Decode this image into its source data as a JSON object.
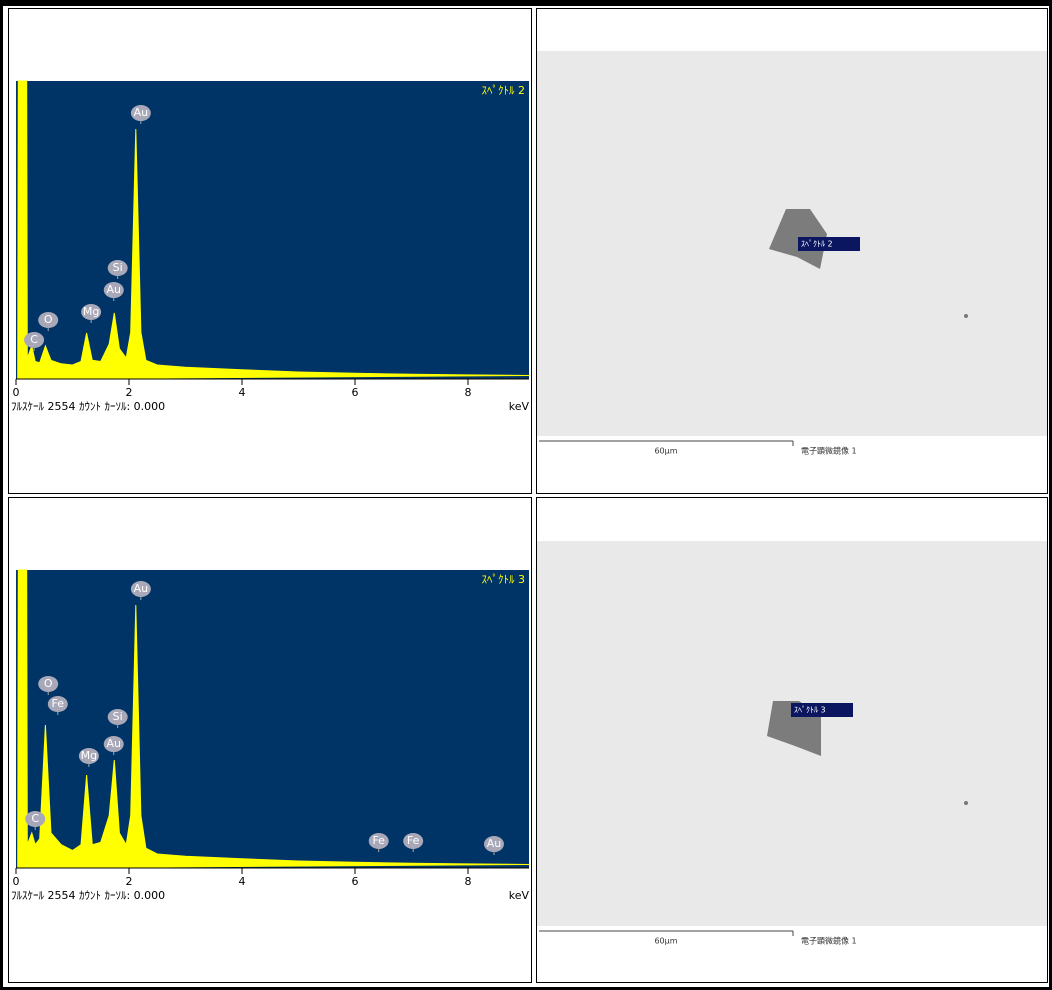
{
  "table": {
    "rows": [
      [
        {
          "chart_data": {
            "type": "line",
            "title": "ｽﾍﾟｸﾄﾙ 2",
            "x_label": "keV",
            "footer": "ﾌﾙｽｹｰﾙ 2554 ｶｳﾝﾄ ｶｰｿﾙ: 0.000",
            "xlim": [
              0,
              9.08
            ],
            "ylim": [
              0,
              2554
            ],
            "xticks": [
              0,
              2,
              4,
              6,
              8
            ],
            "color": "#ffff00",
            "background": "#003366",
            "x": [
              0.03,
              0.04,
              0.19,
              0.2,
              0.28,
              0.34,
              0.42,
              0.52,
              0.62,
              0.8,
              1.0,
              1.15,
              1.25,
              1.35,
              1.5,
              1.65,
              1.74,
              1.83,
              1.95,
              2.03,
              2.12,
              2.21,
              2.3,
              2.5,
              3,
              4,
              5,
              6,
              7,
              8,
              9.08
            ],
            "values": [
              0,
              2554,
              2554,
              180,
              283,
              150,
              140,
              283,
              160,
              130,
              120,
              150,
              394,
              160,
              150,
              300,
              566,
              260,
              180,
              400,
              2143,
              400,
              160,
              120,
              100,
              80,
              60,
              50,
              40,
              35,
              30
            ],
            "peak_labels": [
              {
                "label": "C",
                "x": 0.32,
                "y": 240
              },
              {
                "label": "O",
                "x": 0.57,
                "y": 411
              },
              {
                "label": "Mg",
                "x": 1.33,
                "y": 480
              },
              {
                "label": "Au",
                "x": 1.73,
                "y": 668
              },
              {
                "label": "Si",
                "x": 1.8,
                "y": 857
              },
              {
                "label": "Au",
                "x": 2.21,
                "y": 2185
              }
            ]
          }
        },
        {
          "image": {
            "label": "ｽﾍﾟｸﾄﾙ 2",
            "scale": "60µm",
            "caption": "電子顕微鏡像 1"
          }
        }
      ],
      [
        {
          "chart_data": {
            "type": "line",
            "title": "ｽﾍﾟｸﾄﾙ 3",
            "x_label": "keV",
            "footer": "ﾌﾙｽｹｰﾙ 2554 ｶｳﾝﾄ ｶｰｿﾙ: 0.000",
            "xlim": [
              0,
              9.08
            ],
            "ylim": [
              0,
              2554
            ],
            "xticks": [
              0,
              2,
              4,
              6,
              8
            ],
            "color": "#ffff00",
            "background": "#003366",
            "x": [
              0.03,
              0.04,
              0.19,
              0.2,
              0.28,
              0.34,
              0.42,
              0.52,
              0.62,
              0.8,
              1.0,
              1.15,
              1.25,
              1.35,
              1.5,
              1.65,
              1.74,
              1.83,
              1.95,
              2.03,
              2.12,
              2.21,
              2.3,
              2.5,
              3,
              4,
              5,
              6,
              7,
              8,
              9.08
            ],
            "values": [
              0,
              2554,
              2554,
              200,
              300,
              200,
              250,
              1226,
              300,
              200,
              150,
              200,
              797,
              200,
              220,
              450,
              926,
              300,
              200,
              450,
              2254,
              450,
              170,
              120,
              100,
              80,
              60,
              50,
              40,
              35,
              30
            ],
            "peak_labels": [
              {
                "label": "C",
                "x": 0.34,
                "y": 326
              },
              {
                "label": "O",
                "x": 0.57,
                "y": 1483
              },
              {
                "label": "Fe",
                "x": 0.74,
                "y": 1311
              },
              {
                "label": "Mg",
                "x": 1.29,
                "y": 866
              },
              {
                "label": "Au",
                "x": 1.73,
                "y": 968
              },
              {
                "label": "Si",
                "x": 1.8,
                "y": 1200
              },
              {
                "label": "Au",
                "x": 2.21,
                "y": 2297
              },
              {
                "label": "Fe",
                "x": 6.42,
                "y": 137
              },
              {
                "label": "Fe",
                "x": 7.03,
                "y": 137
              },
              {
                "label": "Au",
                "x": 8.46,
                "y": 111
              }
            ]
          }
        },
        {
          "image": {
            "label": "ｽﾍﾟｸﾄﾙ 3",
            "scale": "60µm",
            "caption": "電子顕微鏡像 1"
          }
        }
      ]
    ]
  }
}
